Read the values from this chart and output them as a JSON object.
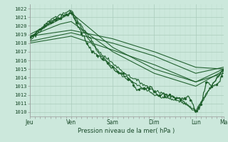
{
  "background_color": "#cce8dc",
  "plot_bg_color": "#cce8dc",
  "grid_color_major": "#aaccbb",
  "grid_color_minor": "#bbddcc",
  "line_color": "#1a5c28",
  "ylim": [
    1009.5,
    1022.5
  ],
  "yticks": [
    1010,
    1011,
    1012,
    1013,
    1014,
    1015,
    1016,
    1017,
    1018,
    1019,
    1020,
    1021,
    1022
  ],
  "day_labels": [
    "Jeu",
    "Ven",
    "Sam",
    "Dim",
    "Lun",
    "Ma"
  ],
  "day_positions": [
    0,
    48,
    96,
    144,
    192,
    224
  ],
  "xlabel": "Pression niveau de la mer( hPa )"
}
